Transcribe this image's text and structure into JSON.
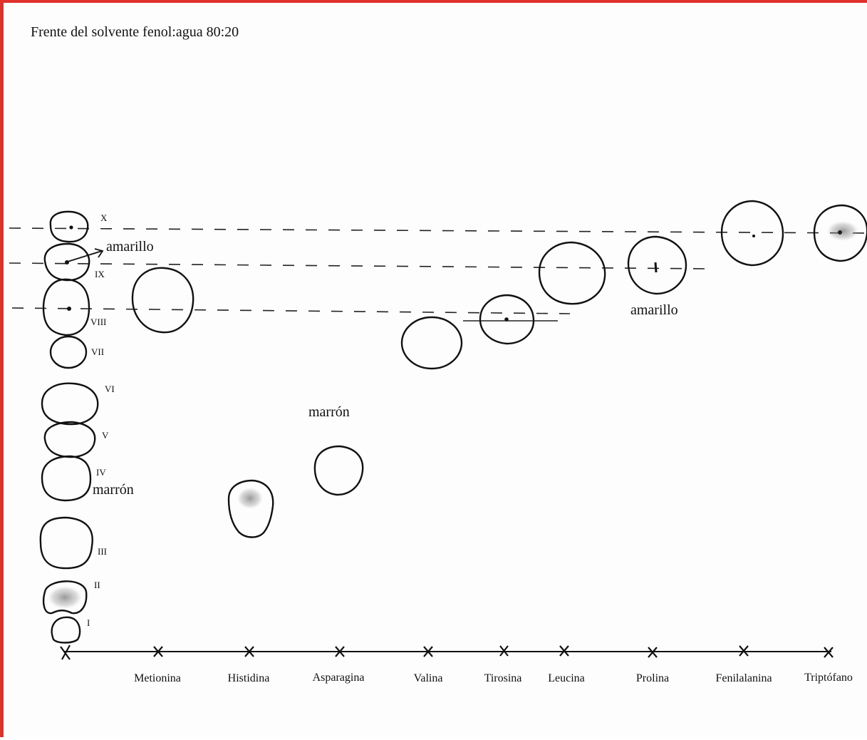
{
  "title": "Frente del solvente fenol:agua 80:20",
  "reference_spots": [
    "I",
    "II",
    "III",
    "IV",
    "V",
    "VI",
    "VII",
    "VIII",
    "IX",
    "X"
  ],
  "samples": [
    "Metionina",
    "Histidina",
    "Asparagina",
    "Valina",
    "Tirosina",
    "Leucina",
    "Prolina",
    "Fenilalanina",
    "Triptófano"
  ],
  "color_notes": {
    "amarillo_ref": "amarillo",
    "marron_ref": "marrón",
    "marron_asparagina": "marrón",
    "amarillo_prolina": "amarillo"
  },
  "colors": {
    "border": "#e0322b",
    "ink": "#111111"
  }
}
